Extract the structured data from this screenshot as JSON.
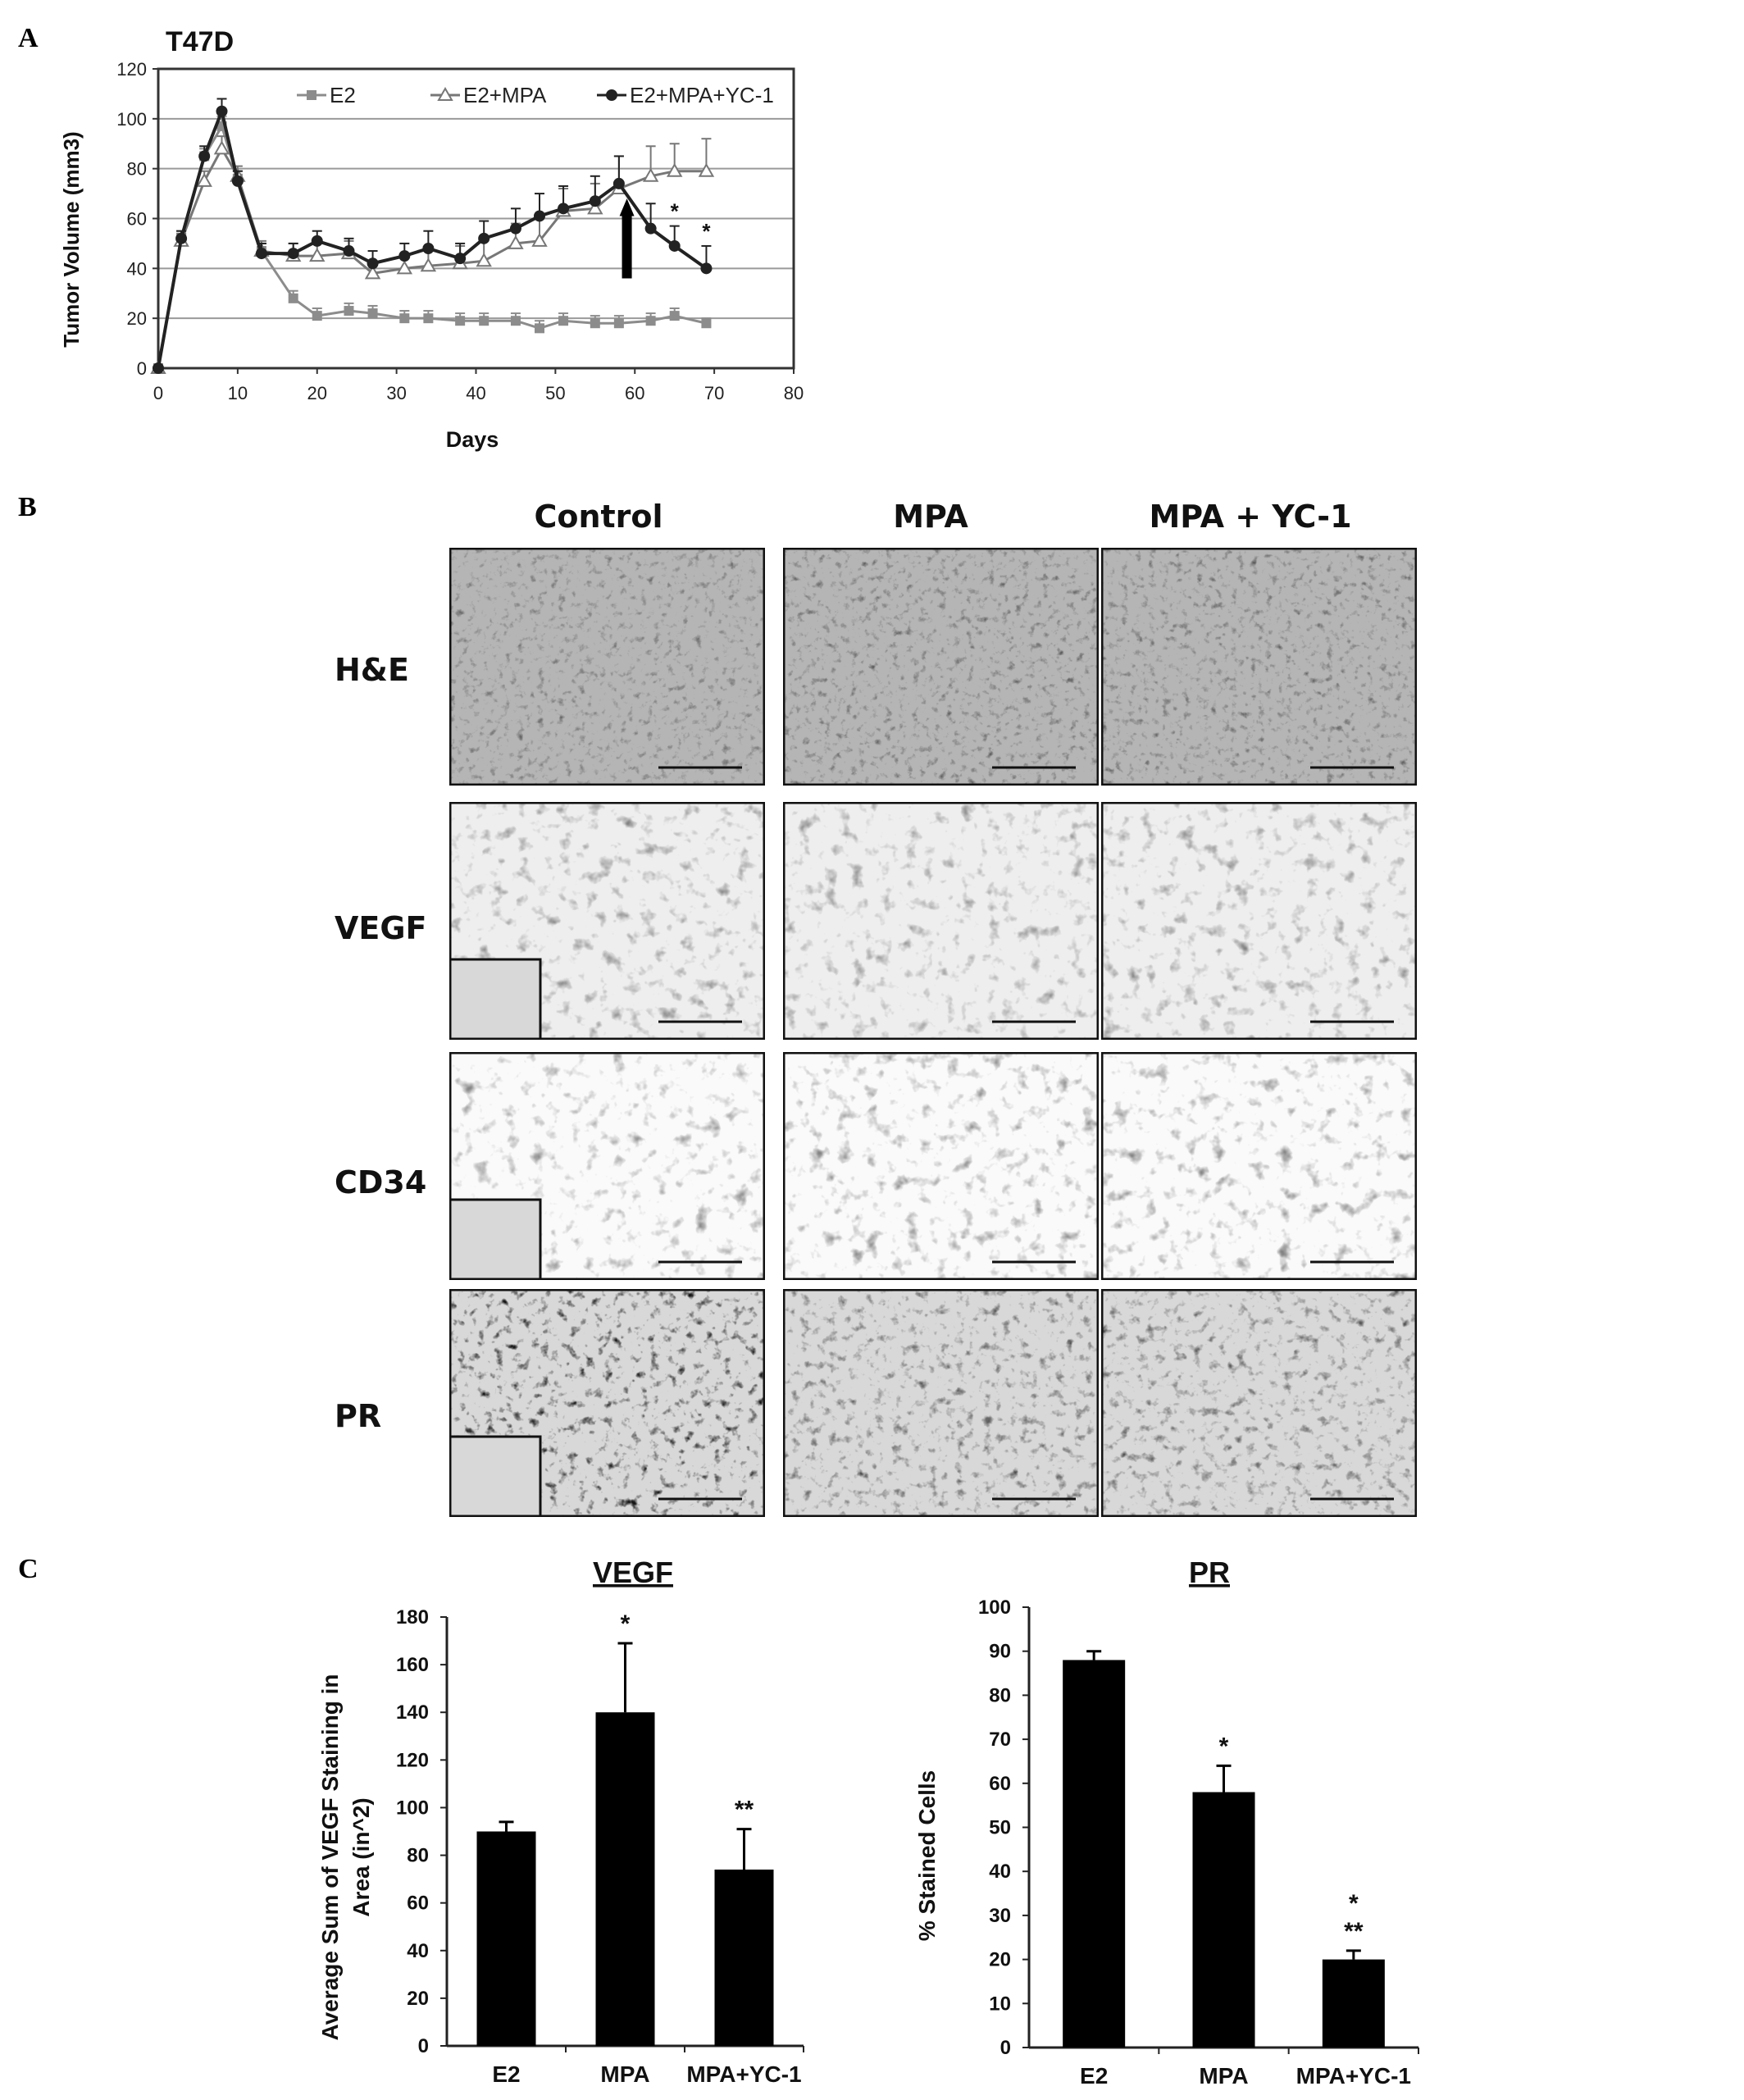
{
  "panels": {
    "a": "A",
    "b": "B",
    "c": "C"
  },
  "line_chart": {
    "title": "T47D",
    "ylabel": "Tumor Volume (mm3)",
    "xlabel": "Days",
    "xticks": [
      "0",
      "10",
      "20",
      "30",
      "40",
      "50",
      "60",
      "70",
      "80"
    ],
    "yticks": [
      "0",
      "20",
      "40",
      "60",
      "80",
      "100",
      "120"
    ],
    "legend": [
      "E2",
      "E2+MPA",
      "E2+MPA+YC-1"
    ]
  },
  "micrographs": {
    "columns": [
      "Control",
      "MPA",
      "MPA + YC-1"
    ],
    "rows": [
      "H&E",
      "VEGF",
      "CD34",
      "PR"
    ]
  },
  "vegf_chart": {
    "title": "VEGF",
    "ylabel_line1": "Average Sum of VEGF Staining in",
    "ylabel_line2": "Area (in^2)",
    "yticks": [
      "0",
      "20",
      "40",
      "60",
      "80",
      "100",
      "120",
      "140",
      "160",
      "180"
    ],
    "categories": [
      "E2",
      "MPA",
      "MPA+YC-1"
    ],
    "stars": [
      "",
      "*",
      "**"
    ]
  },
  "pr_chart": {
    "title": "PR",
    "ylabel": "% Stained Cells",
    "yticks": [
      "0",
      "10",
      "20",
      "30",
      "40",
      "50",
      "60",
      "70",
      "80",
      "90",
      "100"
    ],
    "categories": [
      "E2",
      "MPA",
      "MPA+YC-1"
    ],
    "stars_top": [
      "",
      "",
      "*"
    ],
    "stars": [
      "",
      "*",
      "**"
    ]
  },
  "chart_data": [
    {
      "type": "line",
      "title": "T47D",
      "xlabel": "Days",
      "ylabel": "Tumor Volume (mm3)",
      "xlim": [
        0,
        80
      ],
      "ylim": [
        0,
        120
      ],
      "grid": true,
      "legend_position": "top",
      "annotations": [
        "*",
        "*"
      ],
      "series": [
        {
          "name": "E2",
          "color": "#8c8c8c",
          "marker": "square",
          "x": [
            0,
            2.9,
            5.8,
            8,
            10,
            13,
            17,
            20,
            24,
            27,
            31,
            34,
            38,
            41,
            45,
            48,
            51,
            55,
            58,
            62,
            65,
            69
          ],
          "y": [
            0,
            52,
            85,
            97,
            76,
            47,
            28,
            21,
            23,
            22,
            20,
            20,
            19,
            19,
            19,
            16,
            19,
            18,
            18,
            19,
            21,
            18
          ],
          "err": [
            0,
            3,
            3,
            4,
            3,
            3,
            3,
            3,
            3,
            3,
            3,
            3,
            3,
            3,
            3,
            3,
            3,
            3,
            3,
            3,
            3,
            2
          ]
        },
        {
          "name": "E2+MPA",
          "color": "#777777",
          "marker": "triangle-open",
          "x": [
            0,
            2.9,
            5.8,
            8,
            10,
            13,
            17,
            20,
            24,
            27,
            31,
            34,
            38,
            41,
            45,
            48,
            51,
            55,
            58,
            62,
            65,
            69
          ],
          "y": [
            0,
            51,
            75,
            88,
            77,
            47,
            45,
            45,
            46,
            38,
            40,
            41,
            42,
            43,
            50,
            51,
            63,
            64,
            72,
            77,
            79,
            79
          ],
          "err": [
            0,
            3,
            4,
            5,
            4,
            4,
            5,
            5,
            5,
            5,
            5,
            6,
            7,
            8,
            8,
            9,
            9,
            10,
            13,
            12,
            11,
            13
          ]
        },
        {
          "name": "E2+MPA+YC-1",
          "color": "#222222",
          "marker": "circle",
          "x": [
            0,
            2.9,
            5.8,
            8,
            10,
            13,
            17,
            20,
            24,
            27,
            31,
            34,
            38,
            41,
            45,
            48,
            51,
            55,
            58,
            62,
            65,
            69
          ],
          "y": [
            0,
            52,
            85,
            103,
            75,
            46,
            46,
            51,
            47,
            42,
            45,
            48,
            44,
            52,
            56,
            61,
            64,
            67,
            74,
            56,
            49,
            40
          ],
          "err": [
            0,
            3,
            4,
            5,
            4,
            4,
            4,
            4,
            5,
            5,
            5,
            7,
            6,
            7,
            8,
            9,
            9,
            10,
            11,
            10,
            8,
            9
          ]
        }
      ]
    },
    {
      "type": "bar",
      "title": "VEGF",
      "ylabel": "Average Sum of VEGF Staining in Area (in^2)",
      "categories": [
        "E2",
        "MPA",
        "MPA+YC-1"
      ],
      "values": [
        90,
        140,
        74
      ],
      "errors": [
        4,
        29,
        17
      ],
      "ylim": [
        0,
        180
      ]
    },
    {
      "type": "bar",
      "title": "PR",
      "ylabel": "% Stained Cells",
      "categories": [
        "E2",
        "MPA",
        "MPA+YC-1"
      ],
      "values": [
        88,
        58,
        20
      ],
      "errors": [
        2,
        6,
        2
      ],
      "ylim": [
        0,
        100
      ]
    }
  ]
}
